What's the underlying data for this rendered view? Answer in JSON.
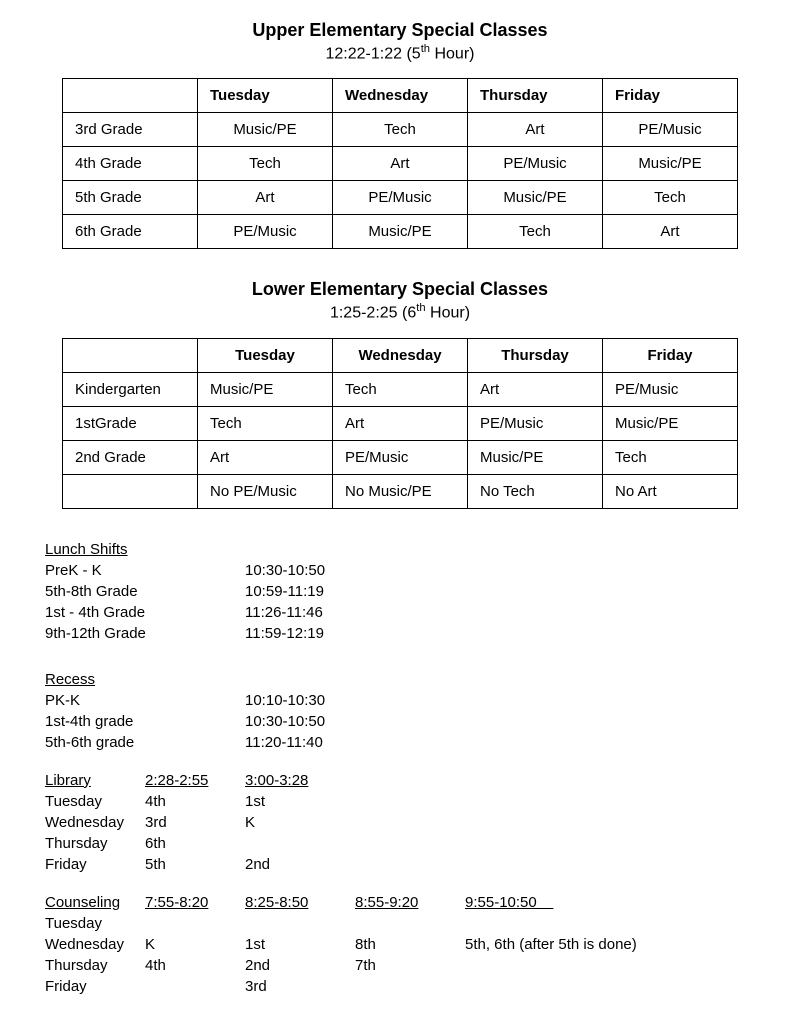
{
  "upper": {
    "title": "Upper Elementary Special Classes",
    "subtitle_pre": "12:22-1:22 (5",
    "subtitle_sup": "th",
    "subtitle_post": " Hour)",
    "headers": [
      "",
      "Tuesday",
      "Wednesday",
      "Thursday",
      "Friday"
    ],
    "rows": [
      [
        "3rd Grade",
        "Music/PE",
        "Tech",
        "Art",
        "PE/Music"
      ],
      [
        "4th Grade",
        "Tech",
        "Art",
        "PE/Music",
        "Music/PE"
      ],
      [
        "5th Grade",
        "Art",
        "PE/Music",
        "Music/PE",
        "Tech"
      ],
      [
        "6th Grade",
        "PE/Music",
        "Music/PE",
        "Tech",
        "Art"
      ]
    ]
  },
  "lower": {
    "title": "Lower Elementary Special Classes",
    "subtitle_pre": "1:25-2:25 (6",
    "subtitle_sup": "th",
    "subtitle_post": " Hour)",
    "headers": [
      "",
      "Tuesday",
      "Wednesday",
      "Thursday",
      "Friday"
    ],
    "rows": [
      [
        "Kindergarten",
        "Music/PE",
        "Tech",
        "Art",
        "PE/Music"
      ],
      [
        "1stGrade",
        "Tech",
        "Art",
        "PE/Music",
        "Music/PE"
      ],
      [
        "2nd Grade",
        "Art",
        "PE/Music",
        "Music/PE",
        "Tech"
      ],
      [
        "",
        "No PE/Music",
        "No Music/PE",
        "No Tech",
        "No Art"
      ]
    ]
  },
  "lunch": {
    "heading": "Lunch Shifts",
    "rows": [
      {
        "label": "PreK - K",
        "time": "10:30-10:50"
      },
      {
        "label": "5th-8th Grade",
        "time": "10:59-11:19"
      },
      {
        "label": "1st - 4th Grade",
        "time": " 11:26-11:46"
      },
      {
        "label": "9th-12th Grade",
        "time": "11:59-12:19"
      }
    ]
  },
  "recess": {
    "heading": "Recess",
    "rows": [
      {
        "label": "PK-K",
        "time": "10:10-10:30"
      },
      {
        "label": "1st-4th grade",
        "time": "10:30-10:50"
      },
      {
        "label": "5th-6th grade",
        "time": "11:20-11:40"
      }
    ]
  },
  "library": {
    "heading": "Library",
    "time1": "2:28-2:55 ",
    "time2": "3:00-3:28",
    "rows": [
      {
        "day": "Tuesday",
        "a": "4th",
        "b": "1st"
      },
      {
        "day": "Wednesday",
        "a": "3rd",
        "b": "K"
      },
      {
        "day": "Thursday",
        "a": "6th",
        "b": ""
      },
      {
        "day": "Friday",
        "a": "5th",
        "b": "2nd"
      }
    ]
  },
  "counseling": {
    "heading": "Counseling",
    "times": [
      "7:55-8:20 ",
      "8:25-8:50",
      "8:55-9:20",
      "9:55-10:50    "
    ],
    "rows": [
      {
        "day": "Tuesday",
        "c": [
          "",
          "",
          "",
          ""
        ]
      },
      {
        "day": "Wednesday",
        "c": [
          "K",
          "1st",
          "8th",
          "5th, 6th (after 5th is done)"
        ]
      },
      {
        "day": "Thursday",
        "c": [
          "4th",
          "2nd",
          "7th",
          ""
        ]
      },
      {
        "day": "Friday",
        "c": [
          "",
          "3rd",
          "",
          ""
        ]
      }
    ]
  }
}
